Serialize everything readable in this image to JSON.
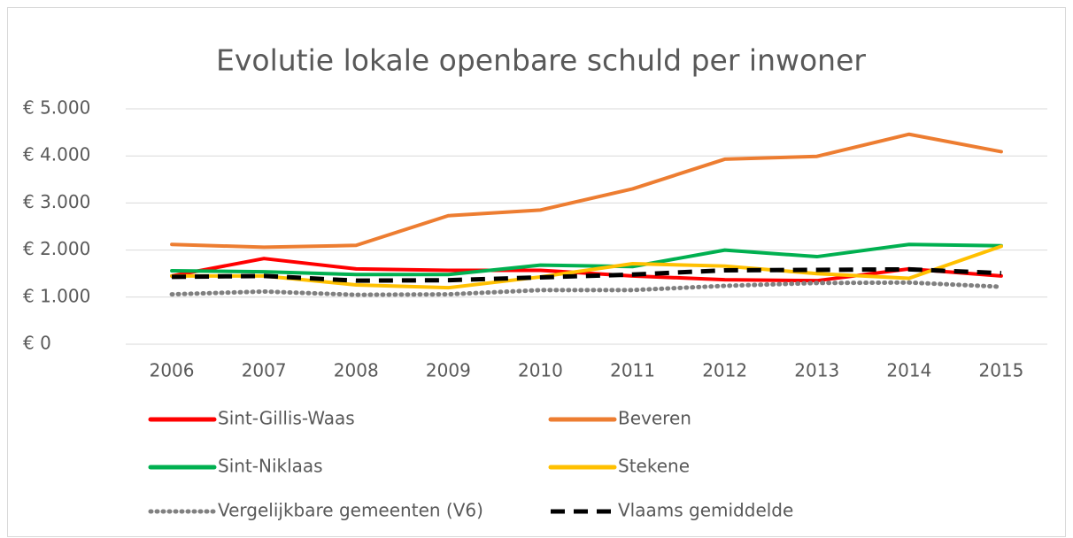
{
  "chart_data": {
    "type": "line",
    "title": "Evolutie lokale openbare schuld per inwoner",
    "categories": [
      "2006",
      "2007",
      "2008",
      "2009",
      "2010",
      "2011",
      "2012",
      "2013",
      "2014",
      "2015"
    ],
    "ylim": [
      0,
      5000
    ],
    "yticks": [
      {
        "value": 0,
        "label": "€ 0"
      },
      {
        "value": 1000,
        "label": "€ 1.000"
      },
      {
        "value": 2000,
        "label": "€ 2.000"
      },
      {
        "value": 3000,
        "label": "€ 3.000"
      },
      {
        "value": 4000,
        "label": "€ 4.000"
      },
      {
        "value": 5000,
        "label": "€ 5.000"
      }
    ],
    "grid": true,
    "legend": "bottom",
    "series": [
      {
        "name": "Sint-Gillis-Waas",
        "color": "#ff0000",
        "dash": "solid",
        "values": [
          1450,
          1820,
          1600,
          1570,
          1570,
          1450,
          1370,
          1350,
          1600,
          1450
        ]
      },
      {
        "name": "Beveren",
        "color": "#ed7d31",
        "dash": "solid",
        "values": [
          2120,
          2060,
          2100,
          2730,
          2850,
          3300,
          3930,
          3990,
          4460,
          4090
        ]
      },
      {
        "name": "Sint-Niklaas",
        "color": "#00b050",
        "dash": "solid",
        "values": [
          1560,
          1540,
          1480,
          1480,
          1680,
          1650,
          2000,
          1860,
          2120,
          2090
        ]
      },
      {
        "name": "Stekene",
        "color": "#ffc000",
        "dash": "solid",
        "values": [
          1450,
          1450,
          1260,
          1200,
          1430,
          1710,
          1660,
          1500,
          1400,
          2080
        ]
      },
      {
        "name": "Vergelijkbare gemeenten (V6)",
        "color": "#808080",
        "dash": "dotted",
        "values": [
          1060,
          1120,
          1050,
          1060,
          1150,
          1150,
          1240,
          1300,
          1310,
          1220
        ]
      },
      {
        "name": "Vlaams gemiddelde",
        "color": "#000000",
        "dash": "dashed",
        "values": [
          1430,
          1450,
          1350,
          1360,
          1420,
          1480,
          1570,
          1580,
          1590,
          1510
        ]
      }
    ]
  }
}
